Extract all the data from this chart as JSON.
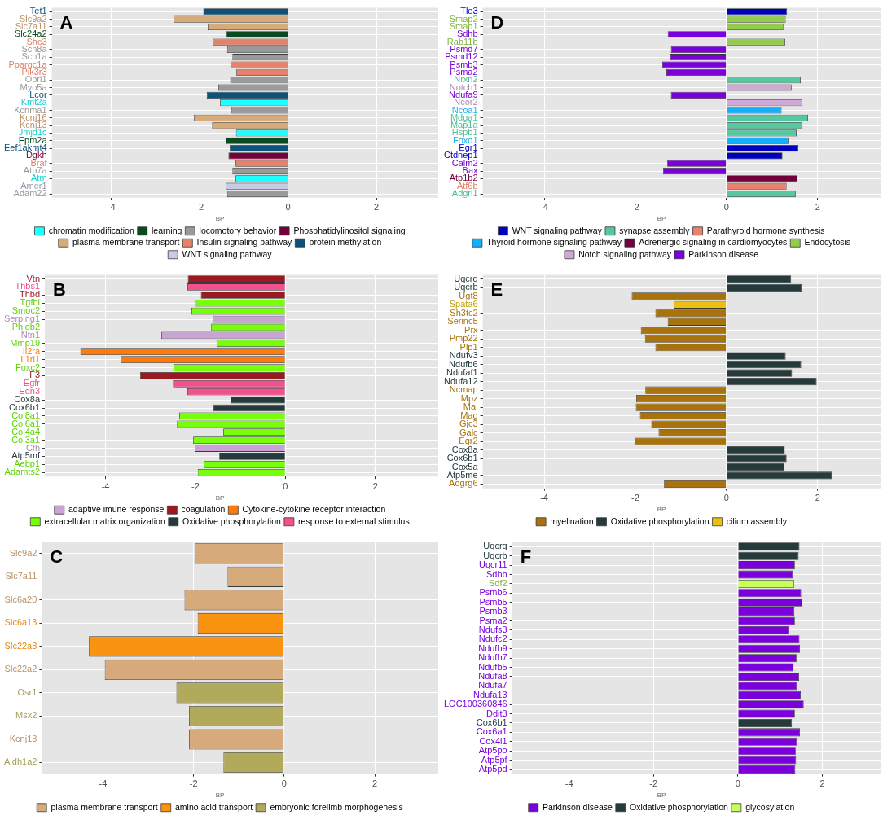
{
  "chart_data": [
    {
      "type": "bar",
      "orientation": "horizontal",
      "title": "A",
      "legend_title": "BP",
      "legend": "bottom",
      "grid": true,
      "xlim": [
        -5.35,
        3.4
      ],
      "xticks": [
        -4,
        -2,
        0,
        2
      ],
      "categories": [
        "Tet1",
        "Slc9a2",
        "Slc7a11",
        "Slc24a2",
        "Shc3",
        "Scn8a",
        "Scn1a",
        "Ppargc1a",
        "Pik3r3",
        "Oprl1",
        "Myo5a",
        "Lcor",
        "Kmt2a",
        "Kcnma1",
        "Kcnj16",
        "Kcnj13",
        "Jmjd1c",
        "Epm2a",
        "Eef1akmt4",
        "Dgkh",
        "Braf",
        "Atp7a",
        "Atm",
        "Amer1",
        "Adam22"
      ],
      "series": [
        {
          "name": "chromatin modification",
          "color": "#1effff",
          "values": [
            null,
            null,
            null,
            null,
            null,
            null,
            null,
            null,
            null,
            null,
            null,
            null,
            -1.54,
            null,
            null,
            null,
            -1.18,
            null,
            null,
            null,
            null,
            null,
            -1.19,
            null,
            null
          ]
        },
        {
          "name": "learning",
          "color": "#0b4a1e",
          "values": [
            null,
            null,
            null,
            -1.4,
            null,
            null,
            null,
            null,
            null,
            null,
            null,
            null,
            null,
            null,
            null,
            null,
            null,
            -1.41,
            null,
            null,
            null,
            null,
            null,
            null,
            null
          ]
        },
        {
          "name": "locomotory behavior",
          "color": "#9a9a9a",
          "values": [
            null,
            null,
            null,
            null,
            null,
            -1.38,
            -1.26,
            null,
            null,
            -1.31,
            -1.58,
            null,
            null,
            -1.28,
            null,
            null,
            null,
            null,
            null,
            null,
            null,
            -1.26,
            null,
            null,
            -1.38
          ]
        },
        {
          "name": "Phosphatidylinositol signaling",
          "color": "#76003a",
          "values": [
            null,
            null,
            null,
            null,
            null,
            null,
            null,
            null,
            null,
            null,
            null,
            null,
            null,
            null,
            null,
            null,
            null,
            null,
            null,
            -1.35,
            null,
            null,
            null,
            null,
            null
          ]
        },
        {
          "name": "plasma membrane transport",
          "color": "#d8aa78",
          "values": [
            null,
            -2.59,
            -1.82,
            null,
            null,
            null,
            null,
            null,
            null,
            null,
            null,
            null,
            null,
            null,
            -2.13,
            -1.72,
            null,
            null,
            null,
            null,
            null,
            null,
            null,
            null,
            null
          ]
        },
        {
          "name": "Insulin signaling pathway",
          "color": "#e6826a",
          "values": [
            null,
            null,
            null,
            null,
            -1.7,
            null,
            null,
            -1.3,
            -1.17,
            null,
            null,
            null,
            null,
            null,
            null,
            null,
            null,
            null,
            null,
            null,
            -1.19,
            null,
            null,
            null,
            null
          ]
        },
        {
          "name": "protein methylation",
          "color": "#0d5278",
          "values": [
            -1.92,
            null,
            null,
            null,
            null,
            null,
            null,
            null,
            null,
            null,
            null,
            -1.84,
            null,
            null,
            null,
            null,
            null,
            null,
            -1.32,
            null,
            null,
            null,
            null,
            null,
            null
          ]
        },
        {
          "name": "WNT signaling pathway",
          "color": "#c9cbe6",
          "values": [
            null,
            null,
            null,
            null,
            null,
            null,
            null,
            null,
            null,
            null,
            null,
            null,
            null,
            null,
            null,
            null,
            null,
            null,
            null,
            null,
            null,
            null,
            null,
            -1.41,
            null
          ]
        }
      ]
    },
    {
      "type": "bar",
      "orientation": "horizontal",
      "title": "B",
      "legend_title": "BP",
      "legend": "bottom",
      "grid": true,
      "xlim": [
        -5.35,
        3.4
      ],
      "xticks": [
        -4,
        -2,
        0,
        2
      ],
      "categories": [
        "Vtn",
        "Thbs1",
        "Thbd",
        "Tgfbi",
        "Smoc2",
        "Serping1",
        "Phldb2",
        "Ntn1",
        "Mmp19",
        "Il2ra",
        "Il1rl1",
        "Foxc2",
        "F3",
        "Egfr",
        "Edn3",
        "Cox8a",
        "Cox6b1",
        "Col8a1",
        "Col6a1",
        "Col4a4",
        "Col3a1",
        "Cfh",
        "Atp5mf",
        "Aebp1",
        "Adamts2"
      ],
      "series": [
        {
          "name": "adaptive imune response",
          "color": "#c9a3d4",
          "values": [
            null,
            null,
            null,
            null,
            null,
            -1.61,
            null,
            -2.76,
            null,
            null,
            null,
            null,
            null,
            null,
            null,
            null,
            null,
            null,
            null,
            null,
            null,
            -2.01,
            null,
            null,
            null
          ]
        },
        {
          "name": "coagulation",
          "color": "#9a1a22",
          "values": [
            -2.17,
            null,
            -1.88,
            null,
            null,
            null,
            null,
            null,
            null,
            null,
            null,
            null,
            -3.23,
            null,
            null,
            null,
            null,
            null,
            null,
            null,
            null,
            null,
            null,
            null,
            null
          ]
        },
        {
          "name": "Cytokine-cytokine receptor interaction",
          "color": "#ff7a0a",
          "values": [
            null,
            null,
            null,
            null,
            null,
            null,
            null,
            null,
            null,
            -4.56,
            -3.66,
            null,
            null,
            null,
            null,
            null,
            null,
            null,
            null,
            null,
            null,
            null,
            null,
            null,
            null
          ]
        },
        {
          "name": "extracellular matrix organization",
          "color": "#77ff0a",
          "values": [
            null,
            null,
            null,
            -1.99,
            -2.09,
            null,
            -1.65,
            null,
            -1.53,
            null,
            null,
            -2.49,
            null,
            null,
            null,
            null,
            null,
            -2.36,
            -2.41,
            -1.38,
            -2.05,
            null,
            null,
            -1.82,
            -1.95
          ]
        },
        {
          "name": "Oxidative phosphorylation",
          "color": "#253a3a",
          "values": [
            null,
            null,
            null,
            null,
            null,
            null,
            null,
            null,
            null,
            null,
            null,
            null,
            null,
            null,
            null,
            -1.22,
            -1.61,
            null,
            null,
            null,
            null,
            null,
            -1.47,
            null,
            null
          ]
        },
        {
          "name": "response to external stimulus",
          "color": "#f4508e",
          "values": [
            null,
            -2.18,
            null,
            null,
            null,
            null,
            null,
            null,
            null,
            null,
            null,
            null,
            null,
            -2.5,
            -2.18,
            null,
            null,
            null,
            null,
            null,
            null,
            null,
            null,
            null,
            null
          ]
        }
      ]
    },
    {
      "type": "bar",
      "orientation": "horizontal",
      "title": "C",
      "legend_title": "BP",
      "legend": "bottom",
      "grid": true,
      "xlim": [
        -5.35,
        3.4
      ],
      "xticks": [
        -4,
        -2,
        0,
        2
      ],
      "categories": [
        "Slc9a2",
        "Slc7a11",
        "Slc6a20",
        "Slc6a13",
        "Slc22a8",
        "Slc22a2",
        "Osr1",
        "Msx2",
        "Kcnj13",
        "Aldh1a2"
      ],
      "series": [
        {
          "name": "plasma membrane transport",
          "color": "#d6aa7a",
          "values": [
            -1.98,
            -1.25,
            -2.2,
            null,
            null,
            -3.96,
            null,
            null,
            -2.1,
            null
          ]
        },
        {
          "name": "amino acid transport",
          "color": "#fa9410",
          "values": [
            null,
            null,
            null,
            -1.91,
            -4.31,
            null,
            null,
            null,
            null,
            null
          ]
        },
        {
          "name": "embryonic forelimb morphogenesis",
          "color": "#b0aa5a",
          "values": [
            null,
            null,
            null,
            null,
            null,
            null,
            -2.38,
            -2.1,
            null,
            -1.34
          ]
        }
      ]
    },
    {
      "type": "bar",
      "orientation": "horizontal",
      "title": "D",
      "legend_title": "BP",
      "legend": "bottom",
      "grid": true,
      "xlim": [
        -5.35,
        3.4
      ],
      "xticks": [
        -4,
        -2,
        0,
        2
      ],
      "categories": [
        "Tle3",
        "Smap2",
        "Smap1",
        "Sdhb",
        "Rab11b",
        "Psmd7",
        "Psmd12",
        "Psmb3",
        "Psma2",
        "Nrxn2",
        "Notch1",
        "Ndufa9",
        "Ncor2",
        "Ncoa1",
        "Mdga1",
        "Map1a",
        "Hspb1",
        "Foxo1",
        "Egr1",
        "Ctdnep1",
        "Calm2",
        "Bax",
        "Atp1b2",
        "Atf6b",
        "Adgrl1"
      ],
      "series": [
        {
          "name": "WNT signaling pathway",
          "color": "#0000c0",
          "values": [
            1.33,
            null,
            null,
            null,
            null,
            null,
            null,
            null,
            null,
            null,
            null,
            null,
            null,
            null,
            null,
            null,
            null,
            null,
            1.58,
            1.23,
            null,
            null,
            null,
            null,
            null
          ]
        },
        {
          "name": "synapse assembly",
          "color": "#55c8a0",
          "values": [
            null,
            null,
            null,
            null,
            null,
            null,
            null,
            null,
            null,
            1.63,
            null,
            null,
            null,
            null,
            1.79,
            1.67,
            1.54,
            null,
            null,
            null,
            null,
            null,
            null,
            null,
            1.52
          ]
        },
        {
          "name": "Parathyroid hormone synthesis",
          "color": "#e8826a",
          "values": [
            null,
            null,
            null,
            null,
            null,
            null,
            null,
            null,
            null,
            null,
            null,
            null,
            null,
            null,
            null,
            null,
            null,
            null,
            null,
            null,
            null,
            null,
            null,
            1.32,
            null
          ]
        },
        {
          "name": "Thyroid hormone signaling pathway",
          "color": "#12b0f8",
          "values": [
            null,
            null,
            null,
            null,
            null,
            null,
            null,
            null,
            null,
            null,
            null,
            null,
            null,
            1.21,
            null,
            null,
            null,
            1.36,
            null,
            null,
            null,
            null,
            null,
            null,
            null
          ]
        },
        {
          "name": "Adrenergic signaling in cardiomyocytes",
          "color": "#72003a",
          "values": [
            null,
            null,
            null,
            null,
            null,
            null,
            null,
            null,
            null,
            null,
            null,
            null,
            null,
            null,
            null,
            null,
            null,
            null,
            null,
            null,
            null,
            null,
            1.56,
            null,
            null
          ]
        },
        {
          "name": "Endocytosis",
          "color": "#92cc4a",
          "values": [
            null,
            1.3,
            1.25,
            null,
            1.29,
            null,
            null,
            null,
            null,
            null,
            null,
            null,
            null,
            null,
            null,
            null,
            null,
            null,
            null,
            null,
            null,
            null,
            null,
            null,
            null
          ]
        },
        {
          "name": "Notch signaling pathway",
          "color": "#d0a8d8",
          "values": [
            null,
            null,
            null,
            null,
            null,
            null,
            null,
            null,
            null,
            null,
            1.43,
            null,
            1.66,
            null,
            null,
            null,
            null,
            null,
            null,
            null,
            null,
            null,
            null,
            null,
            null
          ]
        },
        {
          "name": "Parkinson disease",
          "color": "#7a00dc",
          "values": [
            null,
            null,
            null,
            -1.29,
            null,
            -1.22,
            -1.24,
            -1.41,
            -1.32,
            null,
            null,
            -1.22,
            null,
            null,
            null,
            null,
            null,
            null,
            null,
            null,
            -1.3,
            -1.39,
            null,
            null,
            null
          ]
        }
      ]
    },
    {
      "type": "bar",
      "orientation": "horizontal",
      "title": "E",
      "legend_title": "BP",
      "legend": "bottom",
      "grid": true,
      "xlim": [
        -5.35,
        3.4
      ],
      "xticks": [
        -4,
        -2,
        0,
        2
      ],
      "categories": [
        "Uqcrq",
        "Uqcrb",
        "Ugt8",
        "Spata6",
        "Sh3tc2",
        "Serinc5",
        "Prx",
        "Pmp22",
        "Plp1",
        "Ndufv3",
        "Ndufb6",
        "Ndufaf1",
        "Ndufa12",
        "Ncmap",
        "Mpz",
        "Mal",
        "Mag",
        "Gjc3",
        "Galc",
        "Egr2",
        "Cox8a",
        "Cox6b1",
        "Cox5a",
        "Atp5me",
        "Adgrg6"
      ],
      "series": [
        {
          "name": "myelination",
          "color": "#a8720c",
          "values": [
            null,
            null,
            -2.08,
            null,
            -1.56,
            -1.29,
            -1.88,
            -1.79,
            -1.56,
            null,
            null,
            null,
            null,
            -1.78,
            -1.98,
            -1.99,
            -1.9,
            -1.65,
            -1.49,
            -2.02,
            null,
            null,
            null,
            null,
            -1.37
          ]
        },
        {
          "name": "Oxidative phosphorylation",
          "color": "#253a3a",
          "values": [
            1.42,
            1.65,
            null,
            null,
            null,
            null,
            null,
            null,
            null,
            1.3,
            1.64,
            1.44,
            1.98,
            null,
            null,
            null,
            null,
            null,
            null,
            null,
            1.28,
            1.32,
            1.27,
            2.32,
            null
          ]
        },
        {
          "name": "cilium assembly",
          "color": "#ecc010",
          "values": [
            null,
            null,
            null,
            -1.16,
            null,
            null,
            null,
            null,
            null,
            null,
            null,
            null,
            null,
            null,
            null,
            null,
            null,
            null,
            null,
            null,
            null,
            null,
            null,
            null,
            null
          ]
        }
      ]
    },
    {
      "type": "bar",
      "orientation": "horizontal",
      "title": "F",
      "legend_title": "BP",
      "legend": "bottom",
      "grid": true,
      "xlim": [
        -5.35,
        3.4
      ],
      "xticks": [
        -4,
        -2,
        0,
        2
      ],
      "categories": [
        "Uqcrq",
        "Uqcrb",
        "Uqcr11",
        "Sdhb",
        "Sdf2",
        "Psmb6",
        "Psmb5",
        "Psmb3",
        "Psma2",
        "Ndufs3",
        "Ndufc2",
        "Ndufb9",
        "Ndufb7",
        "Ndufb5",
        "Ndufa8",
        "Ndufa7",
        "Ndufa13",
        "LOC100360846",
        "Ddit3",
        "Cox6b1",
        "Cox6a1",
        "Cox4i1",
        "Atp5po",
        "Atp5pf",
        "Atp5pd"
      ],
      "series": [
        {
          "name": "Parkinson disease",
          "color": "#7a00dc",
          "values": [
            null,
            null,
            1.35,
            1.3,
            null,
            1.5,
            1.53,
            1.34,
            1.35,
            1.21,
            1.46,
            1.47,
            1.39,
            1.32,
            1.45,
            1.4,
            1.49,
            1.56,
            1.35,
            null,
            1.47,
            1.4,
            1.37,
            1.38,
            1.36
          ]
        },
        {
          "name": "Oxidative phosphorylation",
          "color": "#253a3a",
          "values": [
            1.46,
            1.44,
            null,
            null,
            null,
            null,
            null,
            null,
            null,
            null,
            null,
            null,
            null,
            null,
            null,
            null,
            null,
            null,
            null,
            1.28,
            null,
            null,
            null,
            null,
            null
          ]
        },
        {
          "name": "glycosylation",
          "color": "#c8ff5a",
          "values": [
            null,
            null,
            null,
            null,
            1.33,
            null,
            null,
            null,
            null,
            null,
            null,
            null,
            null,
            null,
            null,
            null,
            null,
            null,
            null,
            null,
            null,
            null,
            null,
            null,
            null
          ]
        }
      ]
    }
  ]
}
